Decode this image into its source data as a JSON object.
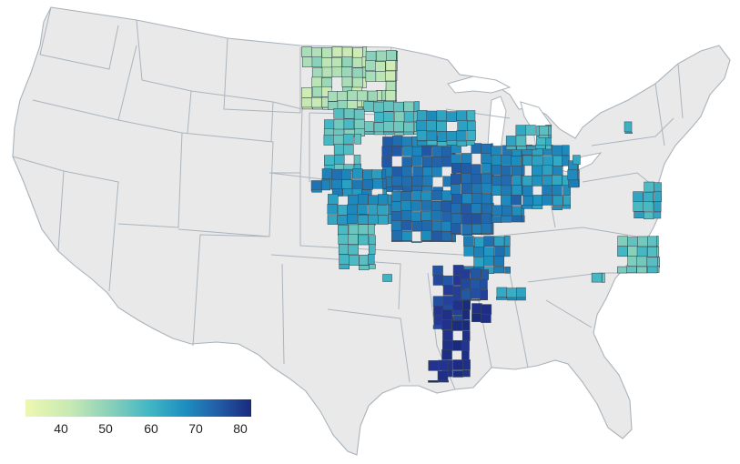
{
  "legend": {
    "ticks": [
      "40",
      "50",
      "60",
      "70",
      "80"
    ],
    "min": 32.5,
    "max": 82.5,
    "colors": [
      "#edf8b1",
      "#c7e9b4",
      "#7fcdbb",
      "#41b6c4",
      "#1d91c0",
      "#225ea8",
      "#253494",
      "#1a2a7c"
    ]
  },
  "map": {
    "region": "contiguous-united-states",
    "value_regions": [
      {
        "name": "north-dakota-minnesota-border",
        "value": 42
      },
      {
        "name": "minnesota-south",
        "value": 50
      },
      {
        "name": "south-dakota-east",
        "value": 52
      },
      {
        "name": "iowa",
        "value": 66
      },
      {
        "name": "nebraska",
        "value": 62
      },
      {
        "name": "kansas",
        "value": 60
      },
      {
        "name": "missouri",
        "value": 65
      },
      {
        "name": "illinois",
        "value": 66
      },
      {
        "name": "indiana",
        "value": 64
      },
      {
        "name": "ohio",
        "value": 60
      },
      {
        "name": "michigan-south",
        "value": 55
      },
      {
        "name": "wisconsin-south",
        "value": 58
      },
      {
        "name": "kentucky-west",
        "value": 62
      },
      {
        "name": "arkansas-east",
        "value": 72
      },
      {
        "name": "mississippi-delta",
        "value": 80
      },
      {
        "name": "louisiana-northeast",
        "value": 79
      },
      {
        "name": "tennessee-west",
        "value": 70
      },
      {
        "name": "alabama-north",
        "value": 58
      },
      {
        "name": "north-carolina-east",
        "value": 50
      },
      {
        "name": "maryland-delaware",
        "value": 55
      },
      {
        "name": "new-york-central",
        "value": 54
      }
    ]
  }
}
